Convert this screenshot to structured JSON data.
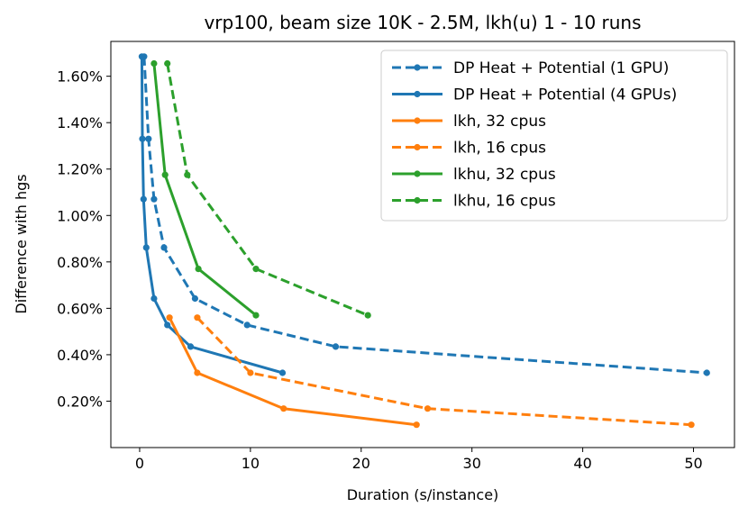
{
  "chart_data": {
    "type": "line",
    "title": "vrp100, beam size 10K - 2.5M, lkh(u) 1 - 10 runs",
    "xlabel": "Duration (s/instance)",
    "ylabel": "Difference with hgs",
    "xlim": [
      -2.6,
      53.7
    ],
    "ylim": [
      0.0,
      1.75
    ],
    "xticks": [
      0,
      10,
      20,
      30,
      40,
      50
    ],
    "xtick_labels": [
      "0",
      "10",
      "20",
      "30",
      "40",
      "50"
    ],
    "yticks": [
      0.2,
      0.4,
      0.6,
      0.8,
      1.0,
      1.2,
      1.4,
      1.6
    ],
    "ytick_labels": [
      "0.20%",
      "0.40%",
      "0.60%",
      "0.80%",
      "1.00%",
      "1.20%",
      "1.40%",
      "1.60%"
    ],
    "legend_position": "top-right",
    "series": [
      {
        "name": "DP Heat + Potential (1 GPU)",
        "color": "#1f77b4",
        "style": "dashed",
        "x": [
          0.4,
          0.8,
          1.3,
          2.2,
          5.0,
          9.7,
          17.7,
          51.2
        ],
        "y": [
          1.685,
          1.33,
          1.07,
          0.862,
          0.642,
          0.528,
          0.435,
          0.322
        ]
      },
      {
        "name": "DP Heat + Potential (4 GPUs)",
        "color": "#1f77b4",
        "style": "solid",
        "x": [
          0.2,
          0.25,
          0.35,
          0.6,
          1.3,
          2.5,
          4.6,
          12.9
        ],
        "y": [
          1.685,
          1.33,
          1.07,
          0.862,
          0.642,
          0.528,
          0.435,
          0.322
        ]
      },
      {
        "name": "lkh, 32 cpus",
        "color": "#ff7f0e",
        "style": "solid",
        "x": [
          2.7,
          5.2,
          13.0,
          25.0
        ],
        "y": [
          0.56,
          0.322,
          0.168,
          0.098
        ]
      },
      {
        "name": "lkh, 16 cpus",
        "color": "#ff7f0e",
        "style": "dashed",
        "x": [
          5.2,
          10.0,
          26.0,
          49.8
        ],
        "y": [
          0.56,
          0.322,
          0.168,
          0.098
        ]
      },
      {
        "name": "lkhu, 32 cpus",
        "color": "#2ca02c",
        "style": "solid",
        "x": [
          1.3,
          2.3,
          5.3,
          10.5
        ],
        "y": [
          1.655,
          1.175,
          0.77,
          0.57
        ]
      },
      {
        "name": "lkhu, 16 cpus",
        "color": "#2ca02c",
        "style": "dashed",
        "x": [
          2.5,
          4.3,
          10.5,
          20.6
        ],
        "y": [
          1.655,
          1.175,
          0.77,
          0.57
        ]
      }
    ]
  }
}
